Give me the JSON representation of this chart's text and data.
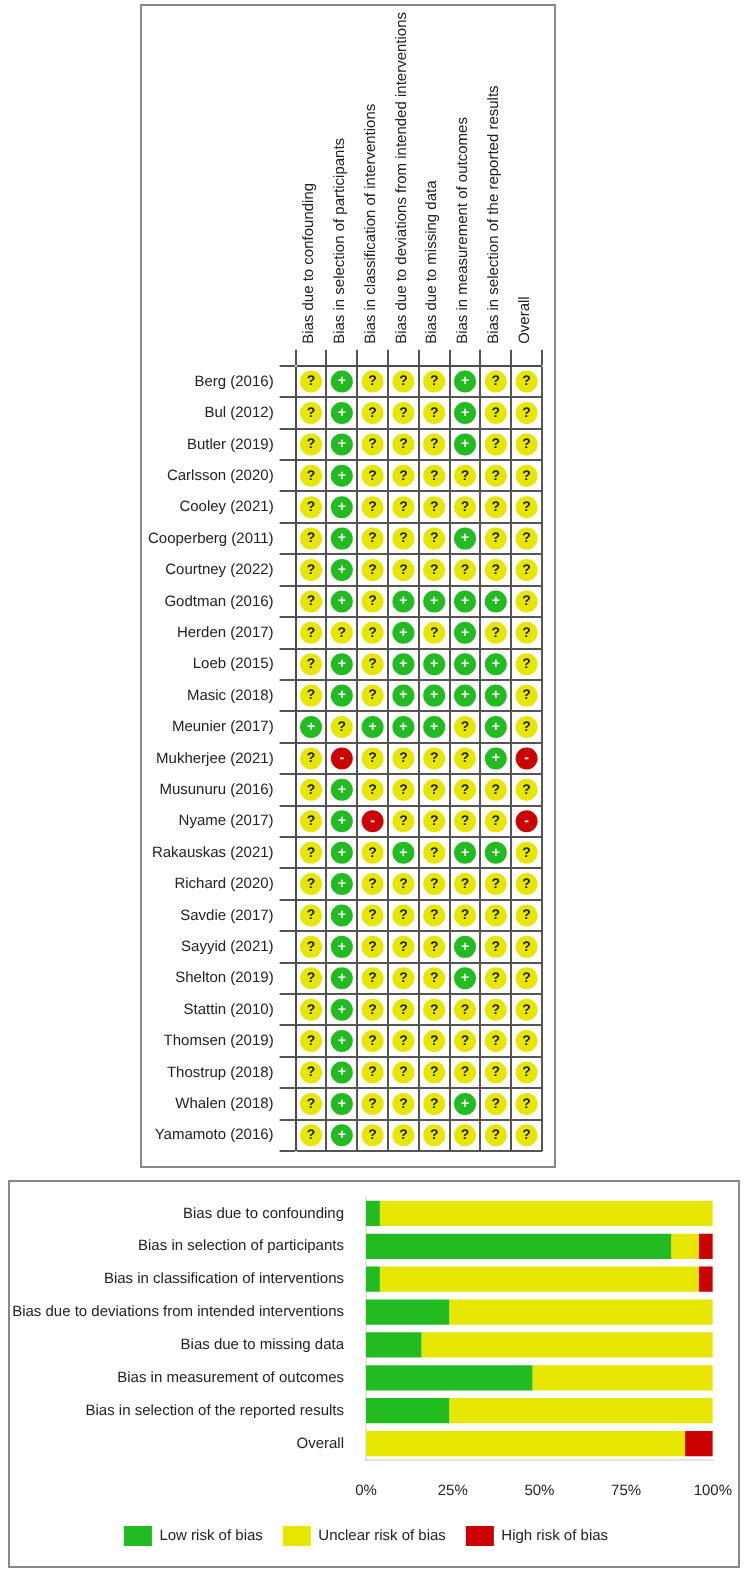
{
  "chart_data": [
    {
      "type": "heatmap",
      "categories": [
        "Bias due to confounding",
        "Bias in selection of participants",
        "Bias in classification of interventions",
        "Bias due to deviations from intended interventions",
        "Bias due to missing data",
        "Bias in measurement of outcomes",
        "Bias in selection of the reported results",
        "Overall"
      ],
      "y_categories": [
        "Berg (2016)",
        "Bul (2012)",
        "Butler (2019)",
        "Carlsson (2020)",
        "Cooley (2021)",
        "Cooperberg (2011)",
        "Courtney (2022)",
        "Godtman (2016)",
        "Herden (2017)",
        "Loeb (2015)",
        "Masic (2018)",
        "Meunier (2017)",
        "Mukherjee (2021)",
        "Musunuru (2016)",
        "Nyame (2017)",
        "Rakauskas (2021)",
        "Richard (2020)",
        "Savdie (2017)",
        "Sayyid (2021)",
        "Shelton (2019)",
        "Stattin (2010)",
        "Thomsen (2019)",
        "Thostrup (2018)",
        "Whalen (2018)",
        "Yamamoto (2016)"
      ],
      "cells": [
        [
          "?",
          "+",
          "?",
          "?",
          "?",
          "+",
          "?",
          "?"
        ],
        [
          "?",
          "+",
          "?",
          "?",
          "?",
          "+",
          "?",
          "?"
        ],
        [
          "?",
          "+",
          "?",
          "?",
          "?",
          "+",
          "?",
          "?"
        ],
        [
          "?",
          "+",
          "?",
          "?",
          "?",
          "?",
          "?",
          "?"
        ],
        [
          "?",
          "+",
          "?",
          "?",
          "?",
          "?",
          "?",
          "?"
        ],
        [
          "?",
          "+",
          "?",
          "?",
          "?",
          "+",
          "?",
          "?"
        ],
        [
          "?",
          "+",
          "?",
          "?",
          "?",
          "?",
          "?",
          "?"
        ],
        [
          "?",
          "+",
          "?",
          "+",
          "+",
          "+",
          "+",
          "?"
        ],
        [
          "?",
          "?",
          "?",
          "+",
          "?",
          "+",
          "?",
          "?"
        ],
        [
          "?",
          "+",
          "?",
          "+",
          "+",
          "+",
          "+",
          "?"
        ],
        [
          "?",
          "+",
          "?",
          "+",
          "+",
          "+",
          "+",
          "?"
        ],
        [
          "+",
          "?",
          "+",
          "+",
          "+",
          "?",
          "+",
          "?"
        ],
        [
          "?",
          "-",
          "?",
          "?",
          "?",
          "?",
          "+",
          "-"
        ],
        [
          "?",
          "+",
          "?",
          "?",
          "?",
          "?",
          "?",
          "?"
        ],
        [
          "?",
          "+",
          "-",
          "?",
          "?",
          "?",
          "?",
          "-"
        ],
        [
          "?",
          "+",
          "?",
          "+",
          "?",
          "+",
          "+",
          "?"
        ],
        [
          "?",
          "+",
          "?",
          "?",
          "?",
          "?",
          "?",
          "?"
        ],
        [
          "?",
          "+",
          "?",
          "?",
          "?",
          "?",
          "?",
          "?"
        ],
        [
          "?",
          "+",
          "?",
          "?",
          "?",
          "+",
          "?",
          "?"
        ],
        [
          "?",
          "+",
          "?",
          "?",
          "?",
          "+",
          "?",
          "?"
        ],
        [
          "?",
          "+",
          "?",
          "?",
          "?",
          "?",
          "?",
          "?"
        ],
        [
          "?",
          "+",
          "?",
          "?",
          "?",
          "?",
          "?",
          "?"
        ],
        [
          "?",
          "+",
          "?",
          "?",
          "?",
          "?",
          "?",
          "?"
        ],
        [
          "?",
          "+",
          "?",
          "?",
          "?",
          "+",
          "?",
          "?"
        ],
        [
          "?",
          "+",
          "?",
          "?",
          "?",
          "?",
          "?",
          "?"
        ]
      ],
      "colors": [
        [
          "#e6e600",
          "#22bb22",
          "#e6e600",
          "#e6e600",
          "#e6e600",
          "#22bb22",
          "#e6e600",
          "#e6e600"
        ],
        [
          "#e6e600",
          "#22bb22",
          "#e6e600",
          "#e6e600",
          "#e6e600",
          "#22bb22",
          "#e6e600",
          "#e6e600"
        ],
        [
          "#e6e600",
          "#22bb22",
          "#e6e600",
          "#e6e600",
          "#e6e600",
          "#22bb22",
          "#e6e600",
          "#e6e600"
        ],
        [
          "#e6e600",
          "#22bb22",
          "#e6e600",
          "#e6e600",
          "#e6e600",
          "#e6e600",
          "#e6e600",
          "#e6e600"
        ],
        [
          "#e6e600",
          "#22bb22",
          "#e6e600",
          "#e6e600",
          "#e6e600",
          "#e6e600",
          "#e6e600",
          "#e6e600"
        ],
        [
          "#e6e600",
          "#22bb22",
          "#e6e600",
          "#e6e600",
          "#e6e600",
          "#22bb22",
          "#e6e600",
          "#e6e600"
        ],
        [
          "#e6e600",
          "#22bb22",
          "#e6e600",
          "#e6e600",
          "#e6e600",
          "#e6e600",
          "#e6e600",
          "#e6e600"
        ],
        [
          "#e6e600",
          "#22bb22",
          "#e6e600",
          "#22bb22",
          "#22bb22",
          "#22bb22",
          "#22bb22",
          "#e6e600"
        ],
        [
          "#e6e600",
          "#e6e600",
          "#e6e600",
          "#22bb22",
          "#e6e600",
          "#22bb22",
          "#e6e600",
          "#e6e600"
        ],
        [
          "#e6e600",
          "#22bb22",
          "#e6e600",
          "#22bb22",
          "#22bb22",
          "#22bb22",
          "#22bb22",
          "#e6e600"
        ],
        [
          "#e6e600",
          "#22bb22",
          "#e6e600",
          "#22bb22",
          "#22bb22",
          "#22bb22",
          "#22bb22",
          "#e6e600"
        ],
        [
          "#22bb22",
          "#e6e600",
          "#22bb22",
          "#22bb22",
          "#22bb22",
          "#e6e600",
          "#22bb22",
          "#e6e600"
        ],
        [
          "#e6e600",
          "#cc0000",
          "#e6e600",
          "#e6e600",
          "#e6e600",
          "#e6e600",
          "#22bb22",
          "#cc0000"
        ],
        [
          "#e6e600",
          "#22bb22",
          "#e6e600",
          "#e6e600",
          "#e6e600",
          "#e6e600",
          "#e6e600",
          "#e6e600"
        ],
        [
          "#e6e600",
          "#22bb22",
          "#cc0000",
          "#e6e600",
          "#e6e600",
          "#e6e600",
          "#e6e600",
          "#cc0000"
        ],
        [
          "#e6e600",
          "#22bb22",
          "#e6e600",
          "#22bb22",
          "#e6e600",
          "#22bb22",
          "#22bb22",
          "#e6e600"
        ],
        [
          "#e6e600",
          "#22bb22",
          "#e6e600",
          "#e6e600",
          "#e6e600",
          "#e6e600",
          "#e6e600",
          "#e6e600"
        ],
        [
          "#e6e600",
          "#22bb22",
          "#e6e600",
          "#e6e600",
          "#e6e600",
          "#e6e600",
          "#e6e600",
          "#e6e600"
        ],
        [
          "#e6e600",
          "#22bb22",
          "#e6e600",
          "#e6e600",
          "#e6e600",
          "#22bb22",
          "#e6e600",
          "#e6e600"
        ],
        [
          "#e6e600",
          "#22bb22",
          "#e6e600",
          "#e6e600",
          "#e6e600",
          "#22bb22",
          "#e6e600",
          "#e6e600"
        ],
        [
          "#e6e600",
          "#22bb22",
          "#e6e600",
          "#e6e600",
          "#e6e600",
          "#e6e600",
          "#e6e600",
          "#e6e600"
        ],
        [
          "#e6e600",
          "#22bb22",
          "#e6e600",
          "#e6e600",
          "#e6e600",
          "#e6e600",
          "#e6e600",
          "#e6e600"
        ],
        [
          "#e6e600",
          "#22bb22",
          "#e6e600",
          "#e6e600",
          "#e6e600",
          "#e6e600",
          "#e6e600",
          "#e6e600"
        ],
        [
          "#e6e600",
          "#22bb22",
          "#e6e600",
          "#e6e600",
          "#e6e600",
          "#22bb22",
          "#e6e600",
          "#e6e600"
        ],
        [
          "#e6e600",
          "#22bb22",
          "#e6e600",
          "#e6e600",
          "#e6e600",
          "#e6e600",
          "#e6e600",
          "#e6e600"
        ]
      ],
      "grid": true
    },
    {
      "type": "bar",
      "orientation": "horizontal",
      "stacked": true,
      "categories": [
        "Bias due to confounding",
        "Bias in selection of participants",
        "Bias in classification of interventions",
        "Bias due to deviations from intended interventions",
        "Bias due to missing data",
        "Bias in measurement of outcomes",
        "Bias in selection of the reported results",
        "Overall"
      ],
      "series": [
        {
          "name": "Low risk of bias",
          "color": "#22bb22",
          "values": [
            4,
            88,
            4,
            24,
            16,
            48,
            24,
            0
          ]
        },
        {
          "name": "Unclear risk of bias",
          "color": "#e6e600",
          "values": [
            96,
            8,
            92,
            76,
            84,
            52,
            76,
            92
          ]
        },
        {
          "name": "High risk of bias",
          "color": "#cc0000",
          "values": [
            0,
            4,
            4,
            0,
            0,
            0,
            0,
            8
          ]
        }
      ],
      "xlim": [
        0,
        100
      ],
      "xticks": [
        {
          "value": 0,
          "label": "0%"
        },
        {
          "value": 25,
          "label": "25%"
        },
        {
          "value": 50,
          "label": "50%"
        },
        {
          "value": 75,
          "label": "75%"
        },
        {
          "value": 100,
          "label": "100%"
        }
      ],
      "grid": false,
      "legend": "bottom"
    }
  ]
}
